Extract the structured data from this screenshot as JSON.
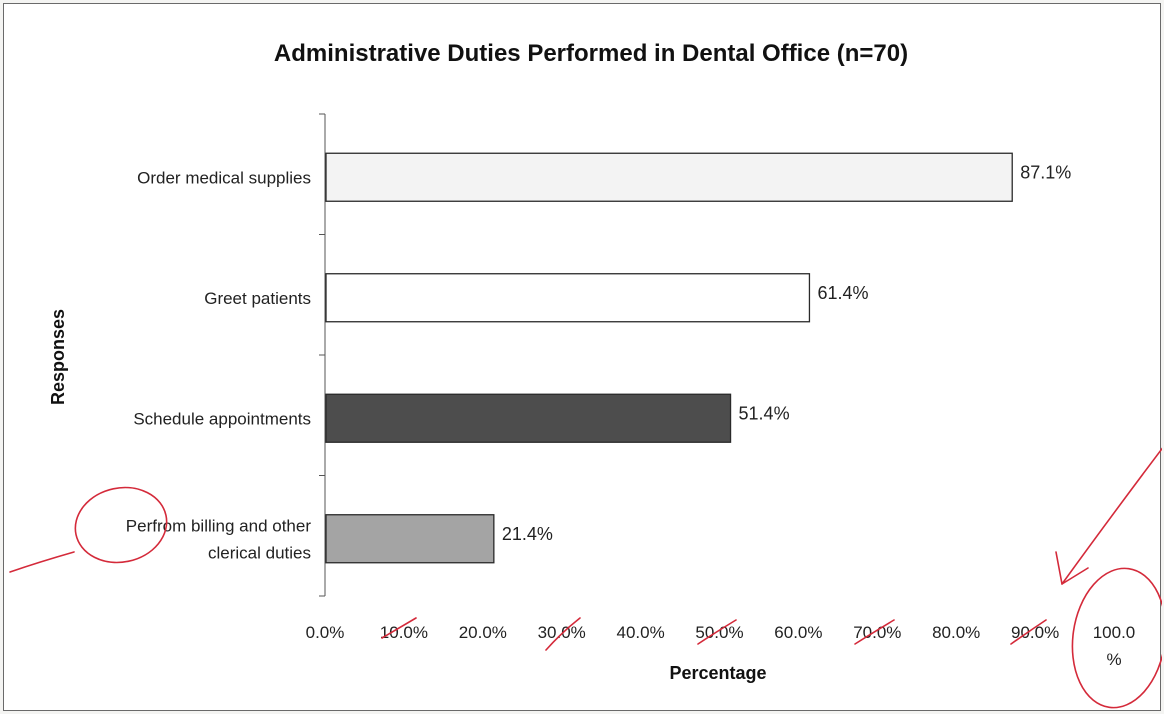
{
  "chart_data": {
    "type": "bar",
    "orientation": "horizontal",
    "title": "Administrative Duties Performed in Dental Office (n=70)",
    "xlabel": "Percentage",
    "ylabel": "Responses",
    "categories": [
      [
        "Order medical supplies"
      ],
      [
        "Greet patients"
      ],
      [
        "Schedule appointments"
      ],
      [
        "Perfrom billing and other",
        "clerical duties"
      ]
    ],
    "values": [
      87.1,
      61.4,
      51.4,
      21.4
    ],
    "data_labels": [
      "87.1%",
      "61.4%",
      "51.4%",
      "21.4%"
    ],
    "bar_colors": [
      "#f3f3f3",
      "#ffffff",
      "#4d4d4d",
      "#a4a4a4"
    ],
    "xlim": [
      0,
      100
    ],
    "x_ticks": [
      [
        "0.0%"
      ],
      [
        "10.0%"
      ],
      [
        "20.0%"
      ],
      [
        "30.0%"
      ],
      [
        "40.0%"
      ],
      [
        "50.0%"
      ],
      [
        "60.0%"
      ],
      [
        "70.0%"
      ],
      [
        "80.0%"
      ],
      [
        "90.0%"
      ],
      [
        "100.0",
        "%"
      ]
    ],
    "grid": false,
    "legend": "none"
  }
}
